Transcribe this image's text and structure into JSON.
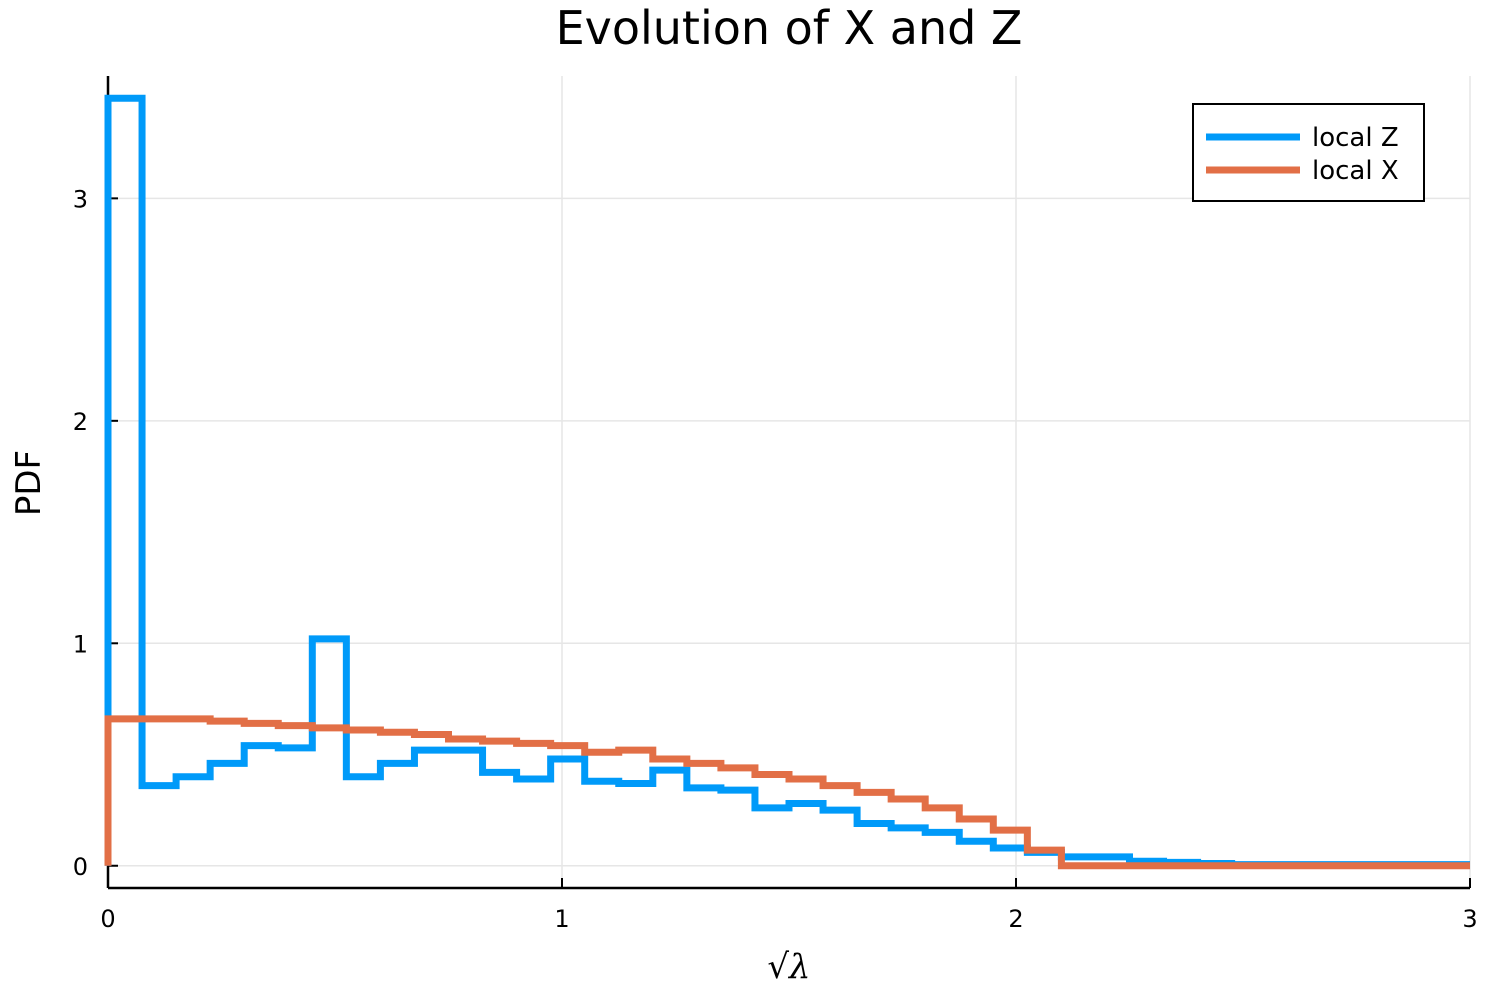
{
  "chart_data": {
    "type": "line",
    "title": "Evolution of X and Z",
    "xlabel": "√λ",
    "ylabel": "PDF",
    "xlim": [
      0,
      3
    ],
    "ylim": [
      -0.1,
      3.55
    ],
    "xticks": [
      0,
      1,
      2,
      3
    ],
    "yticks": [
      0,
      1,
      2,
      3
    ],
    "grid": true,
    "legend_position": "top-right",
    "bin_edges": [
      0,
      0.075,
      0.15,
      0.225,
      0.3,
      0.375,
      0.45,
      0.525,
      0.6,
      0.675,
      0.75,
      0.825,
      0.9,
      0.975,
      1.05,
      1.125,
      1.2,
      1.275,
      1.35,
      1.425,
      1.5,
      1.575,
      1.65,
      1.725,
      1.8,
      1.875,
      1.95,
      2.025,
      2.1,
      2.175,
      2.25,
      2.325,
      2.4,
      2.475,
      2.55,
      2.625,
      2.7,
      2.775,
      2.85,
      2.925,
      3.0
    ],
    "series": [
      {
        "name": "local Z",
        "color": "#009af9",
        "values": [
          3.45,
          0.36,
          0.4,
          0.46,
          0.54,
          0.53,
          1.02,
          0.4,
          0.46,
          0.52,
          0.52,
          0.42,
          0.39,
          0.48,
          0.38,
          0.37,
          0.43,
          0.35,
          0.34,
          0.26,
          0.28,
          0.25,
          0.19,
          0.17,
          0.15,
          0.11,
          0.08,
          0.06,
          0.04,
          0.04,
          0.02,
          0.015,
          0.01,
          0.005,
          0.005,
          0.005,
          0.005,
          0.005,
          0.005,
          0.005
        ]
      },
      {
        "name": "local X",
        "color": "#e26f46",
        "values": [
          0.66,
          0.66,
          0.66,
          0.65,
          0.64,
          0.63,
          0.62,
          0.61,
          0.6,
          0.59,
          0.57,
          0.56,
          0.55,
          0.54,
          0.51,
          0.52,
          0.48,
          0.46,
          0.44,
          0.41,
          0.39,
          0.36,
          0.33,
          0.3,
          0.26,
          0.21,
          0.16,
          0.07,
          0.0,
          0.0,
          0.0,
          0.0,
          0.0,
          0.0,
          0.0,
          0.0,
          0.0,
          0.0,
          0.0,
          0.0
        ]
      }
    ]
  }
}
